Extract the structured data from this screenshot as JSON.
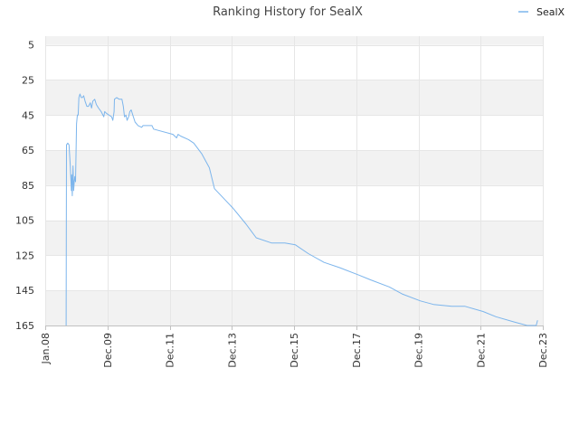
{
  "colors": {
    "line": "#7cb5ec",
    "band": "#f2f2f2",
    "grid": "#e6e6e6",
    "axis": "#c0c0c0"
  },
  "chart_data": {
    "type": "line",
    "title": "Ranking History for SealX",
    "legend": {
      "position": "top-right",
      "entries": [
        "SealX"
      ]
    },
    "y_axis": {
      "reversed": true,
      "range": [
        0,
        165
      ],
      "ticks": [
        5,
        25,
        45,
        65,
        85,
        105,
        125,
        145,
        165
      ],
      "grid": true,
      "alternate_bands": true
    },
    "x_axis": {
      "type": "date",
      "range": [
        "2008-01-01",
        "2023-12-01"
      ],
      "ticks": [
        "Jan.08",
        "Dec.09",
        "Dec.11",
        "Dec.13",
        "Dec.15",
        "Dec.17",
        "Dec.19",
        "Dec.21",
        "Dec.23"
      ]
    },
    "series": [
      {
        "name": "SealX",
        "points": [
          [
            "2008-09-01",
            165
          ],
          [
            "2008-09-05",
            62
          ],
          [
            "2008-09-20",
            61
          ],
          [
            "2008-10-05",
            62
          ],
          [
            "2008-10-20",
            74
          ],
          [
            "2008-11-01",
            88
          ],
          [
            "2008-11-05",
            79
          ],
          [
            "2008-11-12",
            91
          ],
          [
            "2008-11-20",
            74
          ],
          [
            "2008-11-28",
            88
          ],
          [
            "2008-12-05",
            83
          ],
          [
            "2008-12-12",
            80
          ],
          [
            "2008-12-20",
            83
          ],
          [
            "2009-01-01",
            50
          ],
          [
            "2009-01-10",
            45
          ],
          [
            "2009-01-20",
            45
          ],
          [
            "2009-01-28",
            35
          ],
          [
            "2009-02-10",
            33
          ],
          [
            "2009-02-25",
            35
          ],
          [
            "2009-03-10",
            35
          ],
          [
            "2009-03-25",
            34
          ],
          [
            "2009-04-10",
            37
          ],
          [
            "2009-05-01",
            40
          ],
          [
            "2009-05-20",
            40
          ],
          [
            "2009-06-10",
            38
          ],
          [
            "2009-06-25",
            41
          ],
          [
            "2009-07-10",
            37
          ],
          [
            "2009-08-01",
            36
          ],
          [
            "2009-08-20",
            39
          ],
          [
            "2009-09-15",
            41
          ],
          [
            "2009-10-15",
            43
          ],
          [
            "2009-11-15",
            46
          ],
          [
            "2009-11-25",
            43
          ],
          [
            "2009-12-15",
            44
          ],
          [
            "2010-01-15",
            45
          ],
          [
            "2010-02-15",
            46
          ],
          [
            "2010-03-01",
            48
          ],
          [
            "2010-03-15",
            43
          ],
          [
            "2010-03-20",
            36
          ],
          [
            "2010-04-15",
            35
          ],
          [
            "2010-05-15",
            36
          ],
          [
            "2010-06-15",
            36
          ],
          [
            "2010-07-01",
            40
          ],
          [
            "2010-07-15",
            46
          ],
          [
            "2010-08-01",
            45
          ],
          [
            "2010-08-15",
            48
          ],
          [
            "2010-09-01",
            46
          ],
          [
            "2010-09-15",
            43
          ],
          [
            "2010-10-01",
            42
          ],
          [
            "2010-10-20",
            45
          ],
          [
            "2010-11-15",
            49
          ],
          [
            "2010-12-20",
            51
          ],
          [
            "2011-02-01",
            52
          ],
          [
            "2011-02-15",
            51
          ],
          [
            "2011-04-01",
            51
          ],
          [
            "2011-06-01",
            51
          ],
          [
            "2011-06-20",
            53
          ],
          [
            "2012-02-01",
            56
          ],
          [
            "2012-03-15",
            58
          ],
          [
            "2012-04-01",
            56
          ],
          [
            "2012-05-01",
            57
          ],
          [
            "2012-08-01",
            59
          ],
          [
            "2012-10-01",
            61
          ],
          [
            "2013-01-01",
            67
          ],
          [
            "2013-04-01",
            75
          ],
          [
            "2013-06-01",
            87
          ],
          [
            "2014-01-01",
            98
          ],
          [
            "2014-06-01",
            107
          ],
          [
            "2014-10-01",
            115
          ],
          [
            "2015-04-01",
            118
          ],
          [
            "2015-09-01",
            118
          ],
          [
            "2016-01-01",
            119
          ],
          [
            "2016-06-01",
            124
          ],
          [
            "2016-12-01",
            129
          ],
          [
            "2017-06-01",
            132
          ],
          [
            "2018-01-01",
            136
          ],
          [
            "2018-06-01",
            139
          ],
          [
            "2019-01-01",
            143
          ],
          [
            "2019-06-01",
            147
          ],
          [
            "2020-01-01",
            151
          ],
          [
            "2020-06-01",
            153
          ],
          [
            "2021-01-01",
            154
          ],
          [
            "2021-06-01",
            154
          ],
          [
            "2022-01-01",
            157
          ],
          [
            "2022-06-01",
            160
          ],
          [
            "2023-01-01",
            163
          ],
          [
            "2023-06-01",
            165
          ],
          [
            "2023-09-15",
            165
          ],
          [
            "2023-10-01",
            162
          ]
        ]
      }
    ]
  }
}
